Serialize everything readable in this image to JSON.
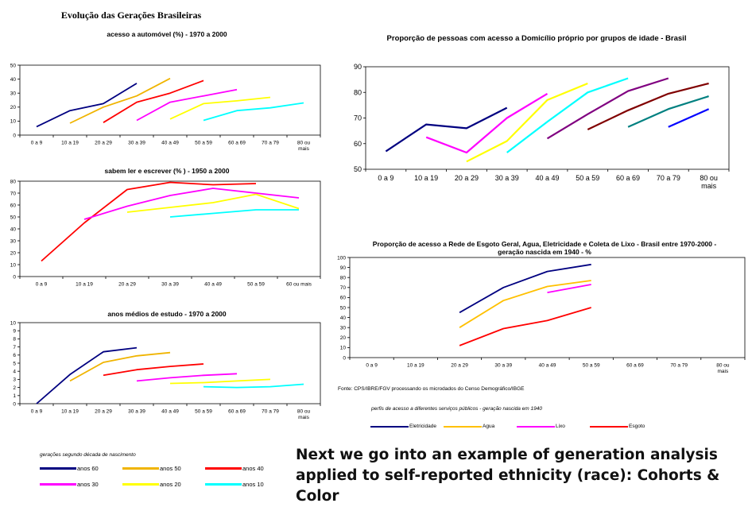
{
  "page_title": "Evolução das Gerações Brasileiras",
  "left_legend_caption": "gerações segundo década de nascimento",
  "left_legend": [
    {
      "label": "anos 60",
      "color": "#000080"
    },
    {
      "label": "anos 50",
      "color": "#f0b400"
    },
    {
      "label": "anos 40",
      "color": "#ff0000"
    },
    {
      "label": "anos 30",
      "color": "#ff00ff"
    },
    {
      "label": "anos 20",
      "color": "#ffff00"
    },
    {
      "label": "anos 10",
      "color": "#00ffff"
    }
  ],
  "source_note": "Fonte: CPS/IBRE/FGV processando os microdados do Censo Demográfico/IBGE",
  "right_legend_caption": "perfis de acesso a diferentes serviços públicos - geração nascida em 1940",
  "right_legend": [
    {
      "label": "Eletricidade",
      "color": "#000080"
    },
    {
      "label": "Agua",
      "color": "#ffc000"
    },
    {
      "label": "Lixo",
      "color": "#ff00ff"
    },
    {
      "label": "Esgoto",
      "color": "#ff0000"
    }
  ],
  "bottom_text": "Next we go into an example of generation analysis applied to self-reported ethnicity (race): Cohorts & Color",
  "chart_data": [
    {
      "id": "auto",
      "type": "line",
      "title": "acesso a automóvel (%) - 1970 a 2000",
      "categories": [
        "0 a 9",
        "10 a 19",
        "20 a 29",
        "30 a 39",
        "40 a 49",
        "50 a 59",
        "60 a 69",
        "70 a 79",
        "80 ou mais"
      ],
      "ylim": [
        0,
        50
      ],
      "yticks": [
        0,
        10,
        20,
        30,
        40,
        50
      ],
      "series": [
        {
          "name": "anos 60",
          "color": "#000080",
          "values": [
            6,
            17.5,
            22.5,
            37,
            null,
            null,
            null,
            null,
            null
          ]
        },
        {
          "name": "anos 50",
          "color": "#f0b400",
          "values": [
            null,
            8.5,
            20,
            28,
            40.5,
            null,
            null,
            null,
            null
          ]
        },
        {
          "name": "anos 40",
          "color": "#ff0000",
          "values": [
            null,
            null,
            9,
            23.5,
            30,
            39,
            null,
            null,
            null
          ]
        },
        {
          "name": "anos 30",
          "color": "#ff00ff",
          "values": [
            null,
            null,
            null,
            10.5,
            23.5,
            28,
            32.5,
            null,
            null
          ]
        },
        {
          "name": "anos 20",
          "color": "#ffff00",
          "values": [
            null,
            null,
            null,
            null,
            11.5,
            22.5,
            24.5,
            27,
            null
          ]
        },
        {
          "name": "anos 10",
          "color": "#00ffff",
          "values": [
            null,
            null,
            null,
            null,
            null,
            10.5,
            17.5,
            19.5,
            23
          ]
        }
      ]
    },
    {
      "id": "ler",
      "type": "line",
      "title": "sabem ler e escrever (% ) - 1950 a 2000",
      "categories": [
        "0 a 9",
        "10 a 19",
        "20 a 29",
        "30 a 39",
        "40 a 49",
        "50 a 59",
        "60 ou mais"
      ],
      "ylim": [
        0,
        80
      ],
      "yticks": [
        0,
        10,
        20,
        30,
        40,
        50,
        60,
        70,
        80
      ],
      "series": [
        {
          "name": "anos 40",
          "color": "#ff0000",
          "values": [
            13,
            45,
            73,
            79,
            77,
            78,
            null
          ]
        },
        {
          "name": "anos 30",
          "color": "#ff00ff",
          "values": [
            null,
            48,
            59,
            68,
            74,
            70,
            66
          ]
        },
        {
          "name": "anos 20",
          "color": "#ffff00",
          "values": [
            null,
            null,
            54,
            58,
            62,
            69,
            57
          ]
        },
        {
          "name": "anos 10",
          "color": "#00ffff",
          "values": [
            null,
            null,
            null,
            50,
            53,
            56,
            56
          ]
        }
      ]
    },
    {
      "id": "estudo",
      "type": "line",
      "title": "anos médios de estudo - 1970 a 2000",
      "categories": [
        "0 a 9",
        "10 a 19",
        "20 a 29",
        "30 a 39",
        "40 a 49",
        "50 a 59",
        "60 a 69",
        "70 a 79",
        "80 ou mais"
      ],
      "ylim": [
        0,
        10
      ],
      "yticks": [
        0,
        1,
        2,
        3,
        4,
        5,
        6,
        7,
        8,
        9,
        10
      ],
      "series": [
        {
          "name": "anos 60",
          "color": "#000080",
          "values": [
            0,
            3.6,
            6.4,
            6.9,
            null,
            null,
            null,
            null,
            null
          ]
        },
        {
          "name": "anos 50",
          "color": "#f0b400",
          "values": [
            null,
            2.8,
            5.1,
            5.9,
            6.3,
            null,
            null,
            null,
            null
          ]
        },
        {
          "name": "anos 40",
          "color": "#ff0000",
          "values": [
            null,
            null,
            3.5,
            4.2,
            4.6,
            4.9,
            null,
            null,
            null
          ]
        },
        {
          "name": "anos 30",
          "color": "#ff00ff",
          "values": [
            null,
            null,
            null,
            2.8,
            3.2,
            3.5,
            3.7,
            null,
            null
          ]
        },
        {
          "name": "anos 20",
          "color": "#ffff00",
          "values": [
            null,
            null,
            null,
            null,
            2.5,
            2.6,
            2.8,
            3.0,
            null
          ]
        },
        {
          "name": "anos 10",
          "color": "#00ffff",
          "values": [
            null,
            null,
            null,
            null,
            null,
            2.1,
            2.0,
            2.1,
            2.4
          ]
        }
      ]
    },
    {
      "id": "domicilio",
      "type": "line",
      "title": "Proporção de pessoas com acesso a Domicílio próprio por grupos de idade - Brasil",
      "categories": [
        "0 a 9",
        "10 a 19",
        "20 a 29",
        "30 a 39",
        "40 a 49",
        "50 a 59",
        "60 a 69",
        "70 a 79",
        "80 ou mais"
      ],
      "ylim": [
        50,
        90
      ],
      "yticks": [
        50,
        60,
        70,
        80,
        90
      ],
      "series": [
        {
          "color": "#000080",
          "values": [
            57,
            67.5,
            66,
            74,
            null,
            null,
            null,
            null,
            null
          ]
        },
        {
          "color": "#ff00ff",
          "values": [
            null,
            62.5,
            56.5,
            70,
            79.5,
            null,
            null,
            null,
            null
          ]
        },
        {
          "color": "#ffff00",
          "values": [
            null,
            null,
            53,
            61,
            77,
            83.5,
            null,
            null,
            null
          ]
        },
        {
          "color": "#00ffff",
          "values": [
            null,
            null,
            null,
            56.5,
            68.5,
            80,
            85.5,
            null,
            null
          ]
        },
        {
          "color": "#800080",
          "values": [
            null,
            null,
            null,
            null,
            62,
            71.5,
            80.5,
            85.5,
            null
          ]
        },
        {
          "color": "#800000",
          "values": [
            null,
            null,
            null,
            null,
            null,
            65.5,
            73,
            79.5,
            83.5
          ]
        },
        {
          "color": "#008080",
          "values": [
            null,
            null,
            null,
            null,
            null,
            null,
            66.5,
            73.5,
            78.5
          ]
        },
        {
          "color": "#0000ff",
          "values": [
            null,
            null,
            null,
            null,
            null,
            null,
            null,
            66.5,
            73.5
          ]
        }
      ]
    },
    {
      "id": "servicos",
      "type": "line",
      "title": "Proporção de acesso a Rede de Esgoto Geral, Agua, Eletricidade e Coleta de Lixo - Brasil entre 1970-2000 - geração nascida em 1940 - %",
      "categories": [
        "0 a 9",
        "10 a 19",
        "20 a 29",
        "30 a 39",
        "40 a 49",
        "50 a 59",
        "60 a 69",
        "70 a 79",
        "80 ou mais"
      ],
      "ylim": [
        0,
        100
      ],
      "yticks": [
        0,
        10,
        20,
        30,
        40,
        50,
        60,
        70,
        80,
        90,
        100
      ],
      "series": [
        {
          "name": "Eletricidade",
          "color": "#000080",
          "values": [
            null,
            null,
            45,
            70,
            86,
            93,
            null,
            null,
            null
          ]
        },
        {
          "name": "Agua",
          "color": "#ffc000",
          "values": [
            null,
            null,
            30,
            57,
            71,
            77,
            null,
            null,
            null
          ]
        },
        {
          "name": "Lixo",
          "color": "#ff00ff",
          "values": [
            null,
            null,
            null,
            null,
            65,
            73,
            null,
            null,
            null
          ]
        },
        {
          "name": "Esgoto",
          "color": "#ff0000",
          "values": [
            null,
            null,
            12,
            29,
            37,
            50,
            null,
            null,
            null
          ]
        }
      ]
    }
  ]
}
